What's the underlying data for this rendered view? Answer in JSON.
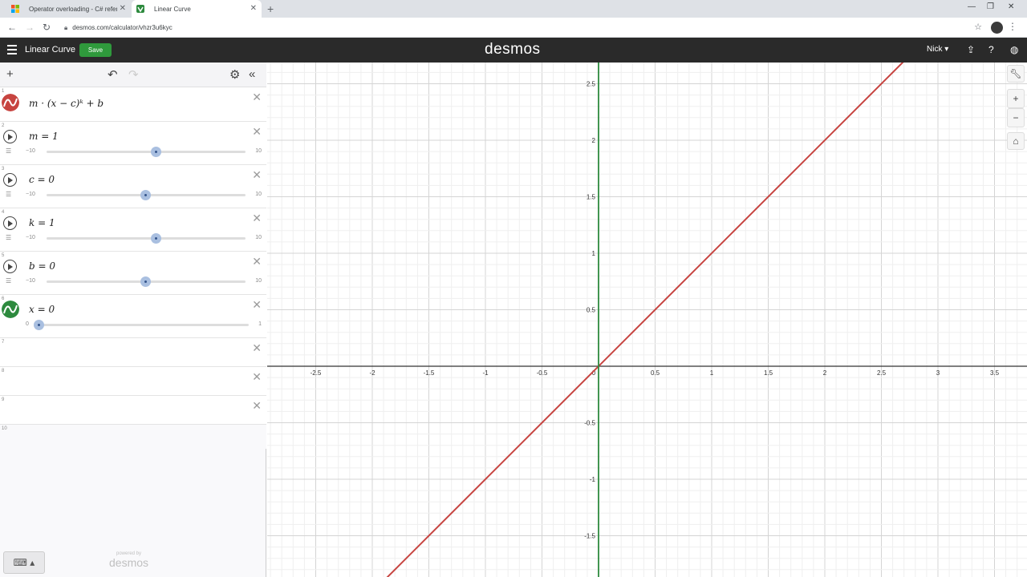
{
  "browser": {
    "tabs": [
      {
        "title": "Operator overloading - C# refere"
      },
      {
        "title": "Linear Curve"
      }
    ],
    "url": "desmos.com/calculator/vhzr3u6kyc"
  },
  "header": {
    "graph_title": "Linear Curve",
    "save_label": "Save",
    "logo": "desmos",
    "user": "Nick"
  },
  "expressions": [
    {
      "number": "1",
      "latex": "m · (x − c)ᵏ + b",
      "color": "#c74440"
    },
    {
      "number": "2",
      "text": "m = 1",
      "min": "−10",
      "max": "10",
      "value": 1
    },
    {
      "number": "3",
      "text": "c = 0",
      "min": "−10",
      "max": "10",
      "value": 0
    },
    {
      "number": "4",
      "text": "k = 1",
      "min": "−10",
      "max": "10",
      "value": 1
    },
    {
      "number": "5",
      "text": "b = 0",
      "min": "−10",
      "max": "10",
      "value": 0
    },
    {
      "number": "6",
      "text": "x = 0",
      "min": "0",
      "max": "1",
      "value": 0,
      "color": "#2d8a3e"
    },
    {
      "number": "7"
    },
    {
      "number": "8"
    },
    {
      "number": "9"
    },
    {
      "number": "10"
    }
  ],
  "powered_by": "powered by",
  "graph": {
    "x_ticks": [
      "-2.5",
      "-2",
      "-1.5",
      "-1",
      "-0.5",
      "0",
      "0.5",
      "1",
      "1.5",
      "2",
      "2.5",
      "3",
      "3.5"
    ],
    "y_ticks": [
      "2.5",
      "2",
      "1.5",
      "1",
      "0.5",
      "-0.5",
      "-1",
      "-1.5"
    ],
    "curve_color": "#c74440",
    "vertical_line_color": "#2d8a3e",
    "function": "y = x"
  }
}
